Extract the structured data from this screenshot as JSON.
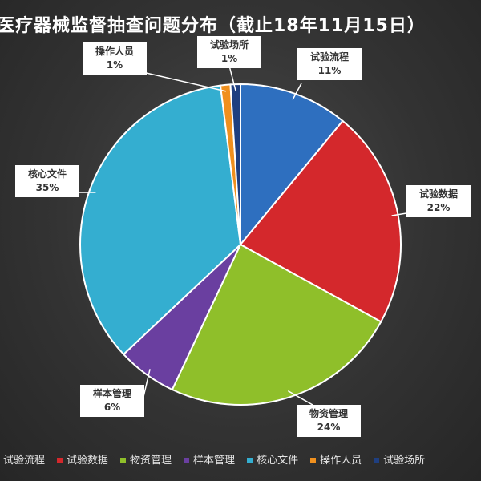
{
  "chart_data": {
    "type": "pie",
    "title": "医疗器械监督抽查问题分布（截止18年11月15日）",
    "categories": [
      "试验流程",
      "试验数据",
      "物资管理",
      "样本管理",
      "核心文件",
      "操作人员",
      "试验场所"
    ],
    "values": [
      11,
      22,
      24,
      6,
      35,
      1,
      1
    ],
    "labels": [
      "11%",
      "22%",
      "24%",
      "6%",
      "35%",
      "1%",
      "1%"
    ],
    "colors": [
      "#2e6fbf",
      "#d4282c",
      "#8fbf2a",
      "#6a3fa0",
      "#34aed0",
      "#f0901e",
      "#1f3f80"
    ],
    "legend": "bottom"
  }
}
